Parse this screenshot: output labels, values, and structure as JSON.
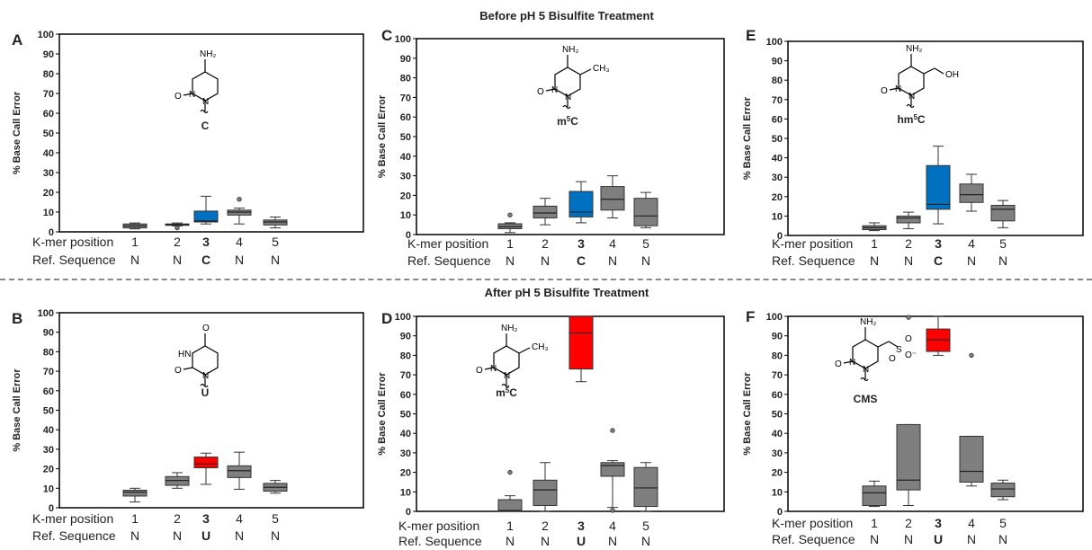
{
  "headers": {
    "before": "Before pH 5 Bisulfite Treatment",
    "after": "After pH 5 Bisulfite Treatment"
  },
  "colors": {
    "gray": "#7f7f7f",
    "blue": "#0070c0",
    "red": "#ff0000",
    "frame": "#000000"
  },
  "chart_data": [
    {
      "panel": "A",
      "type": "box",
      "ylabel": "% Base Call Error",
      "ylim": [
        0,
        100
      ],
      "yticks": [
        0,
        10,
        20,
        30,
        40,
        50,
        60,
        70,
        80,
        90,
        100
      ],
      "structure_label": "C",
      "row_labels": [
        "K-mer position",
        "Ref. Sequence"
      ],
      "positions": [
        "1",
        "2",
        "3",
        "4",
        "5"
      ],
      "ref_sequence": [
        "N",
        "N",
        "C",
        "N",
        "N"
      ],
      "boxes": [
        {
          "position": "1",
          "color": "gray",
          "min": 1.5,
          "q1": 2,
          "median": 3,
          "q3": 4,
          "max": 4.5,
          "outliers": []
        },
        {
          "position": "2",
          "color": "gray",
          "min": 3,
          "q1": 3.3,
          "median": 3.7,
          "q3": 4,
          "max": 4.5,
          "outliers": [
            2
          ]
        },
        {
          "position": "3",
          "color": "blue",
          "min": 4,
          "q1": 5,
          "median": 5.5,
          "q3": 10.5,
          "max": 18,
          "outliers": []
        },
        {
          "position": "4",
          "color": "gray",
          "min": 4,
          "q1": 8.5,
          "median": 10,
          "q3": 11,
          "max": 12,
          "outliers": [
            16.5
          ]
        },
        {
          "position": "5",
          "color": "gray",
          "min": 2,
          "q1": 3.5,
          "median": 5,
          "q3": 6,
          "max": 7.5,
          "outliers": []
        }
      ]
    },
    {
      "panel": "B",
      "type": "box",
      "ylabel": "% Base Call Error",
      "ylim": [
        0,
        100
      ],
      "yticks": [
        0,
        10,
        20,
        30,
        40,
        50,
        60,
        70,
        80,
        90,
        100
      ],
      "structure_label": "U",
      "row_labels": [
        "K-mer position",
        "Ref. Sequence"
      ],
      "positions": [
        "1",
        "2",
        "3",
        "4",
        "5"
      ],
      "ref_sequence": [
        "N",
        "N",
        "U",
        "N",
        "N"
      ],
      "boxes": [
        {
          "position": "1",
          "color": "gray",
          "min": 3,
          "q1": 6,
          "median": 8,
          "q3": 9,
          "max": 10,
          "outliers": []
        },
        {
          "position": "2",
          "color": "gray",
          "min": 10,
          "q1": 11.5,
          "median": 14,
          "q3": 16,
          "max": 18,
          "outliers": []
        },
        {
          "position": "3",
          "color": "red",
          "min": 12,
          "q1": 20.5,
          "median": 22.5,
          "q3": 26,
          "max": 28,
          "outliers": []
        },
        {
          "position": "4",
          "color": "gray",
          "min": 9.5,
          "q1": 15.5,
          "median": 19,
          "q3": 21.5,
          "max": 28.5,
          "outliers": []
        },
        {
          "position": "5",
          "color": "gray",
          "min": 7.5,
          "q1": 8.5,
          "median": 10.5,
          "q3": 12.5,
          "max": 14,
          "outliers": []
        }
      ]
    },
    {
      "panel": "C",
      "type": "box",
      "ylabel": "% Base Call Error",
      "ylim": [
        0,
        100
      ],
      "yticks": [
        0,
        10,
        20,
        30,
        40,
        50,
        60,
        70,
        80,
        90,
        100
      ],
      "structure_label": "m5C",
      "row_labels": [
        "K-mer position",
        "Ref. Sequence"
      ],
      "positions": [
        "1",
        "2",
        "3",
        "4",
        "5"
      ],
      "ref_sequence": [
        "N",
        "N",
        "C",
        "N",
        "N"
      ],
      "boxes": [
        {
          "position": "1",
          "color": "gray",
          "min": 1,
          "q1": 3,
          "median": 4,
          "q3": 5.5,
          "max": 6,
          "outliers": [
            10
          ]
        },
        {
          "position": "2",
          "color": "gray",
          "min": 5,
          "q1": 8.5,
          "median": 11,
          "q3": 14.5,
          "max": 18.5,
          "outliers": []
        },
        {
          "position": "3",
          "color": "blue",
          "min": 6,
          "q1": 9,
          "median": 11.5,
          "q3": 22,
          "max": 27,
          "outliers": []
        },
        {
          "position": "4",
          "color": "gray",
          "min": 8.5,
          "q1": 12.5,
          "median": 18,
          "q3": 24.5,
          "max": 30,
          "outliers": []
        },
        {
          "position": "5",
          "color": "gray",
          "min": 3.5,
          "q1": 4.5,
          "median": 9.5,
          "q3": 18.5,
          "max": 21.5,
          "outliers": []
        }
      ]
    },
    {
      "panel": "D",
      "type": "box",
      "ylabel": "% Base Call Error",
      "ylim": [
        0,
        100
      ],
      "yticks": [
        0,
        10,
        20,
        30,
        40,
        50,
        60,
        70,
        80,
        90,
        100
      ],
      "structure_label": "m5C",
      "row_labels": [
        "K-mer position",
        "Ref. Sequence"
      ],
      "positions": [
        "1",
        "2",
        "3",
        "4",
        "5"
      ],
      "ref_sequence": [
        "N",
        "N",
        "U",
        "N",
        "N"
      ],
      "boxes": [
        {
          "position": "1",
          "color": "gray",
          "min": 0,
          "q1": 0,
          "median": 0.5,
          "q3": 6,
          "max": 8,
          "outliers": [
            20
          ]
        },
        {
          "position": "2",
          "color": "gray",
          "min": 0,
          "q1": 3,
          "median": 11,
          "q3": 16,
          "max": 25,
          "outliers": []
        },
        {
          "position": "3",
          "color": "red",
          "min": 66.5,
          "q1": 73,
          "median": 91.5,
          "q3": 100,
          "max": 100,
          "outliers": []
        },
        {
          "position": "4",
          "color": "gray",
          "min": 2,
          "q1": 18,
          "median": 23.5,
          "q3": 25,
          "max": 26,
          "outliers": [
            41.5,
            0.5
          ]
        },
        {
          "position": "5",
          "color": "gray",
          "min": 0,
          "q1": 2.5,
          "median": 12,
          "q3": 22.5,
          "max": 25,
          "outliers": []
        }
      ]
    },
    {
      "panel": "E",
      "type": "box",
      "ylabel": "% Base Call Error",
      "ylim": [
        0,
        100
      ],
      "yticks": [
        0,
        10,
        20,
        30,
        40,
        50,
        60,
        70,
        80,
        90,
        100
      ],
      "structure_label": "hm5C",
      "row_labels": [
        "K-mer position",
        "Ref. Sequence"
      ],
      "positions": [
        "1",
        "2",
        "3",
        "4",
        "5"
      ],
      "ref_sequence": [
        "N",
        "N",
        "C",
        "N",
        "N"
      ],
      "boxes": [
        {
          "position": "1",
          "color": "gray",
          "min": 2.5,
          "q1": 3,
          "median": 4,
          "q3": 5,
          "max": 6.5,
          "outliers": []
        },
        {
          "position": "2",
          "color": "gray",
          "min": 3.5,
          "q1": 6.5,
          "median": 9,
          "q3": 10,
          "max": 12,
          "outliers": []
        },
        {
          "position": "3",
          "color": "blue",
          "min": 6,
          "q1": 13.5,
          "median": 16,
          "q3": 36,
          "max": 46,
          "outliers": []
        },
        {
          "position": "4",
          "color": "gray",
          "min": 12.5,
          "q1": 17,
          "median": 21,
          "q3": 26.5,
          "max": 31.5,
          "outliers": []
        },
        {
          "position": "5",
          "color": "gray",
          "min": 4,
          "q1": 7.5,
          "median": 13.5,
          "q3": 15.5,
          "max": 18,
          "outliers": []
        }
      ]
    },
    {
      "panel": "F",
      "type": "box",
      "ylabel": "% Base Call Error",
      "ylim": [
        0,
        100
      ],
      "yticks": [
        0,
        10,
        20,
        30,
        40,
        50,
        60,
        70,
        80,
        90,
        100
      ],
      "structure_label": "CMS",
      "row_labels": [
        "K-mer position",
        "Ref. Sequence"
      ],
      "positions": [
        "1",
        "2",
        "3",
        "4",
        "5"
      ],
      "ref_sequence": [
        "N",
        "N",
        "U",
        "N",
        "N"
      ],
      "boxes": [
        {
          "position": "1",
          "color": "gray",
          "min": 2.5,
          "q1": 3,
          "median": 9.5,
          "q3": 13,
          "max": 15.5,
          "outliers": []
        },
        {
          "position": "2",
          "color": "gray",
          "min": 3,
          "q1": 11,
          "median": 16,
          "q3": 44.5,
          "max": 44.5,
          "outliers": [
            99.5
          ]
        },
        {
          "position": "3",
          "color": "red",
          "min": 80,
          "q1": 82,
          "median": 88,
          "q3": 93.5,
          "max": 100,
          "outliers": []
        },
        {
          "position": "4",
          "color": "gray",
          "min": 13,
          "q1": 15,
          "median": 20.5,
          "q3": 38.5,
          "max": 38.5,
          "outliers": [
            80
          ]
        },
        {
          "position": "5",
          "color": "gray",
          "min": 6,
          "q1": 7.5,
          "median": 11.5,
          "q3": 14.5,
          "max": 16,
          "outliers": []
        }
      ]
    }
  ]
}
